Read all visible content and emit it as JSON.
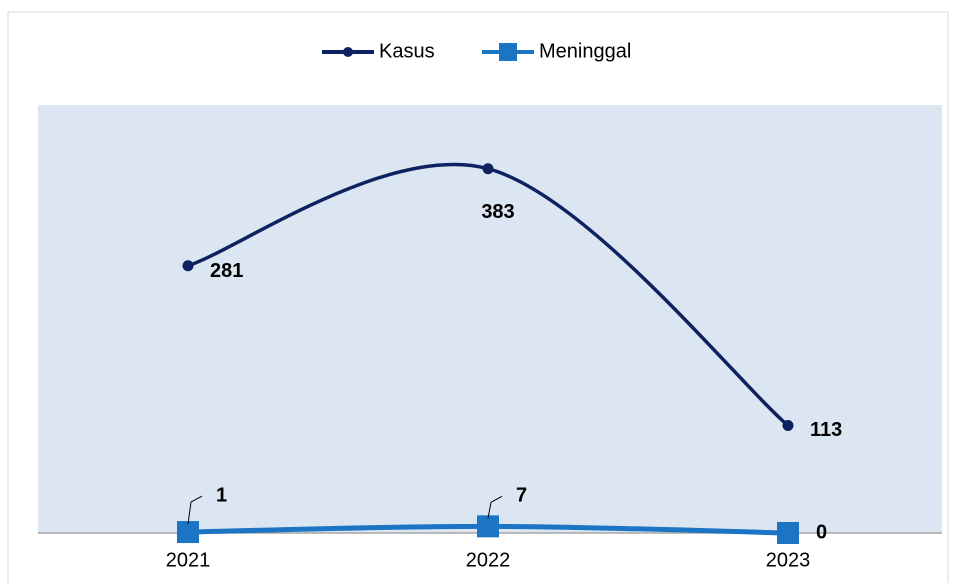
{
  "chart_data": {
    "type": "line",
    "categories": [
      "2021",
      "2022",
      "2023"
    ],
    "series": [
      {
        "name": "Kasus",
        "color": "#0e2160",
        "values": [
          281,
          383,
          113
        ]
      },
      {
        "name": "Meninggal",
        "color": "#1b75c4",
        "values": [
          1,
          7,
          0
        ]
      }
    ],
    "ylim": [
      0,
      450
    ],
    "smooth": true,
    "legend": "top"
  }
}
